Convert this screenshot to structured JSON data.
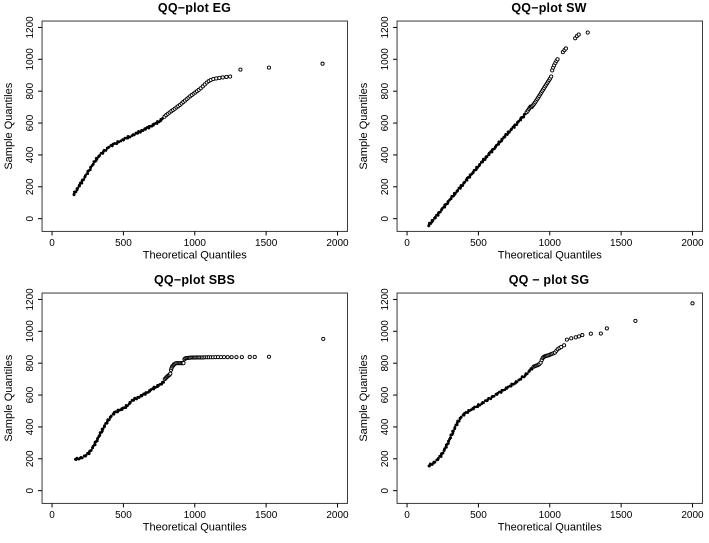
{
  "figure": {
    "background": "#ffffff",
    "point_color": "#000000",
    "box_color": "#3a3a3a",
    "text_color": "#000000"
  },
  "chart_data": [
    {
      "type": "scatter",
      "title": "QQ−plot EG",
      "xlabel": "Theoretical Quantiles",
      "ylabel": "Sample Quantiles",
      "xlim": [
        -70,
        2070
      ],
      "ylim": [
        -80,
        1240
      ],
      "xticks": [
        0,
        500,
        1000,
        1500,
        2000
      ],
      "yticks": [
        0,
        200,
        400,
        600,
        800,
        1000,
        1200
      ],
      "grid": false,
      "marker": "open-circle",
      "dense_curve": [
        [
          150,
          150
        ],
        [
          160,
          164
        ],
        [
          172,
          180
        ],
        [
          186,
          200
        ],
        [
          200,
          220
        ],
        [
          216,
          242
        ],
        [
          232,
          264
        ],
        [
          248,
          287
        ],
        [
          264,
          310
        ],
        [
          280,
          332
        ],
        [
          296,
          354
        ],
        [
          312,
          375
        ],
        [
          328,
          392
        ],
        [
          344,
          406
        ],
        [
          360,
          420
        ],
        [
          376,
          433
        ],
        [
          392,
          445
        ],
        [
          410,
          456
        ],
        [
          430,
          466
        ],
        [
          450,
          475
        ],
        [
          470,
          484
        ],
        [
          492,
          493
        ],
        [
          514,
          502
        ],
        [
          536,
          512
        ],
        [
          558,
          521
        ],
        [
          580,
          530
        ],
        [
          602,
          540
        ],
        [
          624,
          550
        ],
        [
          646,
          560
        ],
        [
          668,
          570
        ],
        [
          690,
          580
        ],
        [
          712,
          590
        ],
        [
          734,
          601
        ],
        [
          756,
          614
        ],
        [
          775,
          629
        ]
      ],
      "points": [
        [
          788,
          640
        ],
        [
          800,
          650
        ],
        [
          812,
          658
        ],
        [
          824,
          666
        ],
        [
          836,
          674
        ],
        [
          848,
          682
        ],
        [
          860,
          690
        ],
        [
          872,
          698
        ],
        [
          884,
          706
        ],
        [
          896,
          714
        ],
        [
          908,
          723
        ],
        [
          920,
          732
        ],
        [
          932,
          741
        ],
        [
          944,
          750
        ],
        [
          956,
          759
        ],
        [
          968,
          768
        ],
        [
          980,
          776
        ],
        [
          992,
          784
        ],
        [
          1004,
          792
        ],
        [
          1016,
          800
        ],
        [
          1028,
          808
        ],
        [
          1042,
          818
        ],
        [
          1056,
          830
        ],
        [
          1070,
          842
        ],
        [
          1084,
          854
        ],
        [
          1098,
          863
        ],
        [
          1112,
          870
        ],
        [
          1130,
          876
        ],
        [
          1150,
          880
        ],
        [
          1172,
          883
        ],
        [
          1196,
          886
        ],
        [
          1222,
          889
        ],
        [
          1248,
          892
        ],
        [
          1320,
          935
        ],
        [
          1520,
          948
        ],
        [
          1895,
          972
        ]
      ]
    },
    {
      "type": "scatter",
      "title": "QQ−plot SW",
      "xlabel": "Theoretical Quantiles",
      "ylabel": "Sample Quantiles",
      "xlim": [
        -70,
        2070
      ],
      "ylim": [
        -80,
        1240
      ],
      "xticks": [
        0,
        500,
        1000,
        1500,
        2000
      ],
      "yticks": [
        0,
        200,
        400,
        600,
        800,
        1000,
        1200
      ],
      "grid": false,
      "marker": "open-circle",
      "dense_curve": [
        [
          148,
          -45
        ],
        [
          166,
          -26
        ],
        [
          184,
          -7
        ],
        [
          202,
          12
        ],
        [
          220,
          32
        ],
        [
          238,
          52
        ],
        [
          256,
          71
        ],
        [
          274,
          90
        ],
        [
          292,
          110
        ],
        [
          310,
          130
        ],
        [
          328,
          150
        ],
        [
          346,
          168
        ],
        [
          364,
          187
        ],
        [
          382,
          206
        ],
        [
          400,
          225
        ],
        [
          418,
          245
        ],
        [
          436,
          264
        ],
        [
          454,
          282
        ],
        [
          472,
          300
        ],
        [
          490,
          319
        ],
        [
          508,
          338
        ],
        [
          526,
          357
        ],
        [
          544,
          375
        ],
        [
          562,
          393
        ],
        [
          580,
          411
        ],
        [
          598,
          429
        ],
        [
          616,
          447
        ],
        [
          634,
          465
        ],
        [
          652,
          483
        ],
        [
          670,
          501
        ],
        [
          688,
          519
        ],
        [
          706,
          537
        ],
        [
          724,
          554
        ],
        [
          742,
          571
        ],
        [
          760,
          588
        ],
        [
          778,
          606
        ],
        [
          796,
          624
        ],
        [
          814,
          642
        ],
        [
          830,
          658
        ]
      ],
      "points": [
        [
          838,
          668
        ],
        [
          846,
          678
        ],
        [
          854,
          688
        ],
        [
          860,
          696
        ],
        [
          866,
          703
        ],
        [
          872,
          700
        ],
        [
          878,
          707
        ],
        [
          885,
          714
        ],
        [
          891,
          722
        ],
        [
          898,
          730
        ],
        [
          905,
          740
        ],
        [
          912,
          750
        ],
        [
          919,
          760
        ],
        [
          926,
          770
        ],
        [
          933,
          780
        ],
        [
          940,
          790
        ],
        [
          947,
          800
        ],
        [
          954,
          810
        ],
        [
          961,
          820
        ],
        [
          968,
          830
        ],
        [
          975,
          840
        ],
        [
          982,
          850
        ],
        [
          989,
          860
        ],
        [
          996,
          870
        ],
        [
          1003,
          880
        ],
        [
          1010,
          892
        ],
        [
          1017,
          930
        ],
        [
          1024,
          948
        ],
        [
          1031,
          963
        ],
        [
          1039,
          977
        ],
        [
          1047,
          990
        ],
        [
          1055,
          1000
        ],
        [
          1092,
          1045
        ],
        [
          1103,
          1058
        ],
        [
          1113,
          1068
        ],
        [
          1178,
          1132
        ],
        [
          1190,
          1145
        ],
        [
          1203,
          1155
        ],
        [
          1266,
          1168
        ]
      ]
    },
    {
      "type": "scatter",
      "title": "QQ−plot SBS",
      "xlabel": "Theoretical Quantiles",
      "ylabel": "Sample Quantiles",
      "xlim": [
        -70,
        2070
      ],
      "ylim": [
        -80,
        1240
      ],
      "xticks": [
        0,
        500,
        1000,
        1500,
        2000
      ],
      "yticks": [
        0,
        200,
        400,
        600,
        800,
        1000,
        1200
      ],
      "grid": false,
      "marker": "open-circle",
      "dense_curve": [
        [
          160,
          197
        ],
        [
          178,
          200
        ],
        [
          196,
          204
        ],
        [
          214,
          210
        ],
        [
          232,
          218
        ],
        [
          250,
          230
        ],
        [
          268,
          248
        ],
        [
          286,
          272
        ],
        [
          304,
          300
        ],
        [
          322,
          330
        ],
        [
          340,
          360
        ],
        [
          358,
          390
        ],
        [
          376,
          418
        ],
        [
          394,
          443
        ],
        [
          410,
          462
        ],
        [
          425,
          478
        ],
        [
          440,
          490
        ],
        [
          455,
          498
        ],
        [
          470,
          505
        ],
        [
          485,
          511
        ],
        [
          500,
          517
        ],
        [
          515,
          525
        ],
        [
          530,
          537
        ],
        [
          545,
          551
        ],
        [
          560,
          563
        ],
        [
          575,
          573
        ],
        [
          590,
          580
        ],
        [
          605,
          586
        ],
        [
          620,
          593
        ],
        [
          635,
          600
        ],
        [
          650,
          608
        ],
        [
          665,
          616
        ],
        [
          680,
          624
        ],
        [
          695,
          633
        ],
        [
          710,
          642
        ],
        [
          725,
          650
        ],
        [
          740,
          657
        ],
        [
          755,
          664
        ],
        [
          770,
          672
        ],
        [
          782,
          680
        ]
      ],
      "points": [
        [
          790,
          700
        ],
        [
          797,
          707
        ],
        [
          804,
          713
        ],
        [
          810,
          718
        ],
        [
          817,
          723
        ],
        [
          823,
          728
        ],
        [
          829,
          734
        ],
        [
          833,
          758
        ],
        [
          838,
          770
        ],
        [
          843,
          779
        ],
        [
          849,
          786
        ],
        [
          855,
          792
        ],
        [
          862,
          797
        ],
        [
          870,
          800
        ],
        [
          879,
          800
        ],
        [
          888,
          800
        ],
        [
          897,
          800
        ],
        [
          906,
          800
        ],
        [
          914,
          800
        ],
        [
          921,
          800
        ],
        [
          928,
          824
        ],
        [
          935,
          830
        ],
        [
          943,
          832
        ],
        [
          951,
          833
        ],
        [
          959,
          834
        ],
        [
          967,
          834
        ],
        [
          976,
          835
        ],
        [
          985,
          835
        ],
        [
          994,
          835
        ],
        [
          1003,
          835
        ],
        [
          1012,
          836
        ],
        [
          1021,
          836
        ],
        [
          1031,
          836
        ],
        [
          1041,
          836
        ],
        [
          1051,
          836
        ],
        [
          1062,
          836
        ],
        [
          1074,
          837
        ],
        [
          1086,
          837
        ],
        [
          1099,
          837
        ],
        [
          1113,
          837
        ],
        [
          1128,
          837
        ],
        [
          1145,
          838
        ],
        [
          1163,
          838
        ],
        [
          1183,
          838
        ],
        [
          1205,
          838
        ],
        [
          1230,
          838
        ],
        [
          1258,
          838
        ],
        [
          1292,
          838
        ],
        [
          1330,
          838
        ],
        [
          1385,
          839
        ],
        [
          1420,
          839
        ],
        [
          1520,
          840
        ],
        [
          1900,
          952
        ]
      ]
    },
    {
      "type": "scatter",
      "title": "QQ − plot SG",
      "xlabel": "Theoretical Quantiles",
      "ylabel": "Sample Quantiles",
      "xlim": [
        -70,
        2070
      ],
      "ylim": [
        -80,
        1240
      ],
      "xticks": [
        0,
        500,
        1000,
        1500,
        2000
      ],
      "yticks": [
        0,
        200,
        400,
        600,
        800,
        1000,
        1200
      ],
      "grid": false,
      "marker": "open-circle",
      "dense_curve": [
        [
          150,
          155
        ],
        [
          166,
          163
        ],
        [
          182,
          172
        ],
        [
          198,
          183
        ],
        [
          214,
          196
        ],
        [
          230,
          212
        ],
        [
          246,
          232
        ],
        [
          262,
          256
        ],
        [
          278,
          284
        ],
        [
          294,
          314
        ],
        [
          310,
          346
        ],
        [
          326,
          378
        ],
        [
          342,
          408
        ],
        [
          358,
          434
        ],
        [
          374,
          456
        ],
        [
          390,
          472
        ],
        [
          406,
          484
        ],
        [
          422,
          494
        ],
        [
          440,
          504
        ],
        [
          458,
          513
        ],
        [
          476,
          522
        ],
        [
          494,
          531
        ],
        [
          512,
          541
        ],
        [
          530,
          551
        ],
        [
          548,
          561
        ],
        [
          566,
          571
        ],
        [
          584,
          581
        ],
        [
          602,
          591
        ],
        [
          620,
          601
        ],
        [
          638,
          611
        ],
        [
          656,
          621
        ],
        [
          674,
          631
        ],
        [
          692,
          641
        ],
        [
          710,
          650
        ],
        [
          728,
          660
        ],
        [
          746,
          670
        ],
        [
          764,
          681
        ],
        [
          782,
          692
        ],
        [
          800,
          704
        ],
        [
          818,
          717
        ],
        [
          836,
          731
        ],
        [
          850,
          744
        ],
        [
          862,
          756
        ],
        [
          872,
          766
        ],
        [
          880,
          774
        ]
      ],
      "points": [
        [
          888,
          778
        ],
        [
          896,
          781
        ],
        [
          904,
          784
        ],
        [
          912,
          787
        ],
        [
          920,
          790
        ],
        [
          928,
          795
        ],
        [
          936,
          804
        ],
        [
          944,
          820
        ],
        [
          951,
          833
        ],
        [
          958,
          839
        ],
        [
          966,
          843
        ],
        [
          974,
          845
        ],
        [
          982,
          847
        ],
        [
          990,
          849
        ],
        [
          999,
          852
        ],
        [
          1008,
          856
        ],
        [
          1017,
          859
        ],
        [
          1026,
          862
        ],
        [
          1036,
          866
        ],
        [
          1046,
          878
        ],
        [
          1056,
          888
        ],
        [
          1068,
          895
        ],
        [
          1080,
          902
        ],
        [
          1100,
          912
        ],
        [
          1120,
          948
        ],
        [
          1150,
          956
        ],
        [
          1182,
          962
        ],
        [
          1205,
          968
        ],
        [
          1228,
          976
        ],
        [
          1288,
          985
        ],
        [
          1358,
          986
        ],
        [
          1400,
          1018
        ],
        [
          1600,
          1065
        ],
        [
          2000,
          1175
        ]
      ]
    }
  ]
}
